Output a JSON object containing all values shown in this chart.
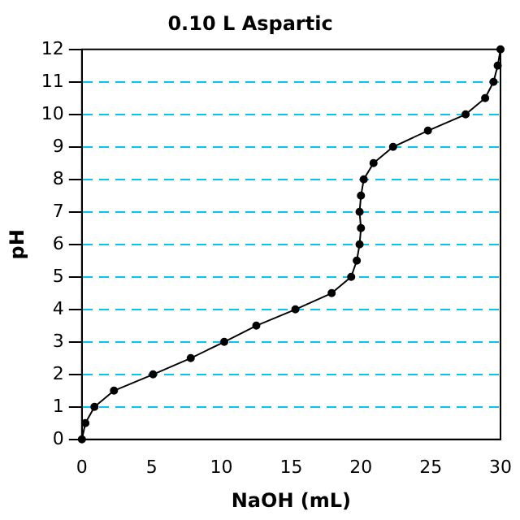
{
  "chart_data": {
    "type": "line",
    "title": "0.10 L Aspartic",
    "xlabel": "NaOH (mL)",
    "ylabel": "pH",
    "series": [
      {
        "color": "#000000",
        "x": [
          0,
          0.25,
          0.9,
          2.3,
          5.1,
          7.8,
          10.2,
          12.5,
          15.3,
          17.9,
          19.3,
          19.7,
          19.9,
          20.0,
          19.9,
          20.0,
          20.2,
          20.9,
          22.3,
          24.8,
          27.5,
          28.9,
          29.5,
          29.8,
          30
        ],
        "values": [
          0,
          0.5,
          1,
          1.5,
          2,
          2.5,
          3,
          3.5,
          4,
          4.5,
          5,
          5.5,
          6,
          6.5,
          7,
          7.5,
          8,
          8.5,
          9,
          9.5,
          10,
          10.5,
          11,
          11.5,
          12
        ]
      }
    ],
    "xlim": [
      0,
      30
    ],
    "xticks": [
      0,
      5,
      10,
      15,
      20,
      25,
      30
    ],
    "ylim": [
      0,
      12
    ],
    "yticks": [
      0,
      1,
      2,
      3,
      4,
      5,
      6,
      7,
      8,
      9,
      10,
      11,
      12
    ],
    "grid": "y",
    "legend": false,
    "marker": "circle",
    "line_style": "solid"
  }
}
